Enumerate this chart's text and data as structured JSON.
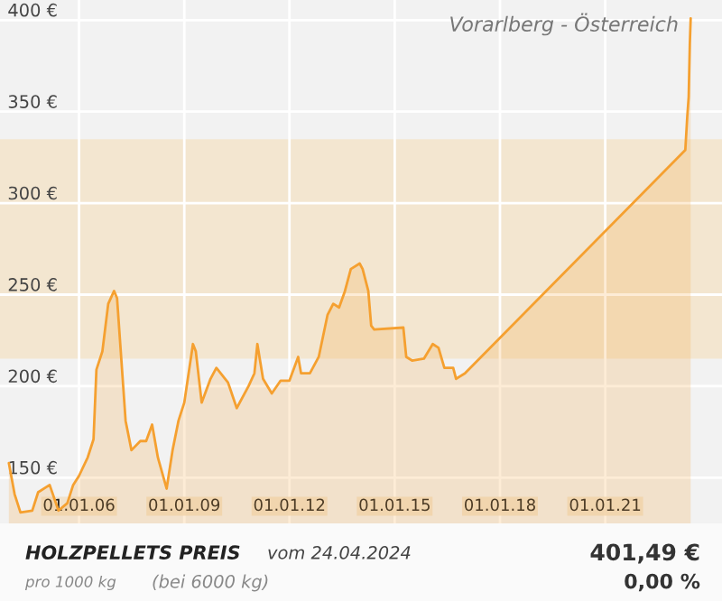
{
  "chart_data": {
    "type": "area",
    "title": "HOLZPELLETS PREIS",
    "subtitle": "Vorarlberg - Österreich",
    "annotations": [
      "vom 24.04.2024",
      "pro 1000 kg",
      "(bei 6000 kg)",
      "401,49 €",
      "0,00 %"
    ],
    "x": [
      "2004-01",
      "2004-03",
      "2004-05",
      "2004-09",
      "2004-11",
      "2005-03",
      "2005-06",
      "2005-09",
      "2005-11",
      "2006-01",
      "2006-04",
      "2006-06",
      "2006-07",
      "2006-09",
      "2006-11",
      "2007-01",
      "2007-02",
      "2007-05",
      "2007-07",
      "2007-10",
      "2007-12",
      "2008-02",
      "2008-04",
      "2008-07",
      "2008-09",
      "2008-11",
      "2009-01",
      "2009-04",
      "2009-05",
      "2009-07",
      "2009-10",
      "2009-12",
      "2010-04",
      "2010-07",
      "2010-11",
      "2011-01",
      "2011-02",
      "2011-04",
      "2011-07",
      "2011-10",
      "2012-01",
      "2012-04",
      "2012-05",
      "2012-08",
      "2012-11",
      "2013-02",
      "2013-04",
      "2013-06",
      "2013-08",
      "2013-10",
      "2014-01",
      "2014-02",
      "2014-04",
      "2014-05",
      "2014-06",
      "2015-04",
      "2015-05",
      "2015-07",
      "2015-11",
      "2016-02",
      "2016-04",
      "2016-06",
      "2016-09",
      "2016-10",
      "2017-01",
      "2023-04-15",
      "2023-05-05",
      "2023-05-20",
      "2023-06-01",
      "2023-06-10"
    ],
    "series": [
      {
        "color": "#f5a030",
        "values": [
          158,
          141,
          131,
          132,
          142,
          146,
          132,
          136,
          146,
          151,
          161,
          171,
          209,
          219,
          245,
          252,
          248,
          181,
          165,
          170,
          170,
          179,
          161,
          144,
          165,
          181,
          191,
          223,
          219,
          191,
          204,
          210,
          202,
          188,
          200,
          207,
          223,
          204,
          196,
          203,
          203,
          216,
          207,
          207,
          216,
          239,
          245,
          243,
          252,
          264,
          267,
          264,
          252,
          233,
          231,
          232,
          216,
          214,
          215,
          223,
          221,
          210,
          210,
          204,
          207,
          329,
          347,
          358,
          387,
          401
        ]
      }
    ],
    "bands": [
      {
        "axis": "y",
        "from": 215,
        "to": 335,
        "color": "#f3e6d0"
      }
    ],
    "xlim": [
      "2003-10",
      "2024-05"
    ],
    "xticks": [
      {
        "value": "2006-01-01",
        "label": "01.01.06"
      },
      {
        "value": "2009-01-01",
        "label": "01.01.09"
      },
      {
        "value": "2012-01-01",
        "label": "01.01.12"
      },
      {
        "value": "2015-01-01",
        "label": "01.01.15"
      },
      {
        "value": "2018-01-01",
        "label": "01.01.18"
      },
      {
        "value": "2021-01-01",
        "label": "01.01.21"
      }
    ],
    "ylim": [
      125,
      411
    ],
    "yticks": [
      {
        "value": 150,
        "label": "150 €"
      },
      {
        "value": 200,
        "label": "200 €"
      },
      {
        "value": 250,
        "label": "250 €"
      },
      {
        "value": 300,
        "label": "300 €"
      },
      {
        "value": 350,
        "label": "350 €"
      },
      {
        "value": 400,
        "label": "400 €"
      }
    ],
    "grid": true
  }
}
